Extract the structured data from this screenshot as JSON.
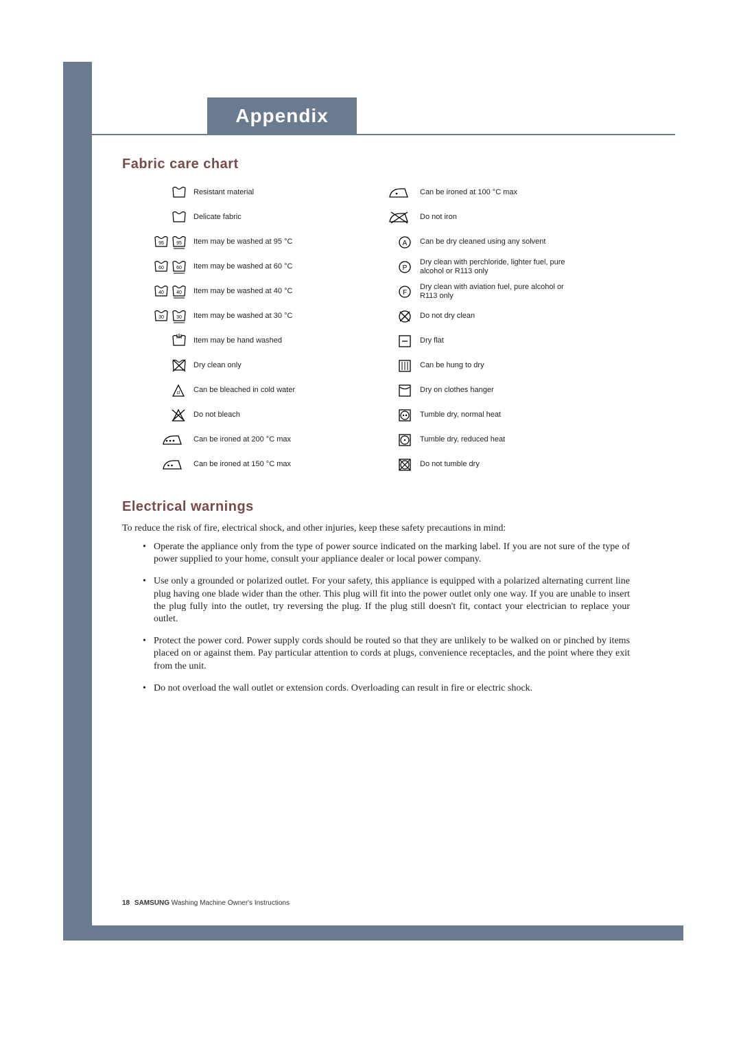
{
  "title": "Appendix",
  "section1_heading": "Fabric care chart",
  "section2_heading": "Electrical warnings",
  "warnings_intro": "To reduce the risk of fire, electrical shock, and other injuries, keep these safety precautions in mind:",
  "warnings": [
    "Operate the appliance only from the type of power source indicated on the marking label.  If you are not sure of the type of power supplied to your home, consult your appliance dealer or local power company.",
    "Use only a grounded or polarized outlet.  For your safety, this appliance is equipped with a polarized alternating current line plug having one blade wider than the other.  This plug will fit into the power outlet only one way.  If you are unable to insert the plug fully into the outlet, try reversing the plug.  If the plug still doesn't fit, contact your electrician to replace your outlet.",
    "Protect the power cord. Power supply cords should be routed so that they are unlikely to be walked on or pinched by items placed on or against them.  Pay particular attention to cords at plugs, convenience receptacles, and the point where they exit from the unit.",
    "Do not overload the wall outlet or extension cords.  Overloading can result in fire or electric shock."
  ],
  "footer_page": "18",
  "footer_brand": "SAMSUNG",
  "footer_text": " Washing Machine Owner's Instructions",
  "chart_left": [
    {
      "icon": "tub",
      "label": "Resistant material"
    },
    {
      "icon": "tub",
      "label": "Delicate fabric"
    },
    {
      "icon": "tub-95-pair",
      "label": "Item may be washed at 95 °C"
    },
    {
      "icon": "tub-60-pair",
      "label": "Item may be washed at 60 °C"
    },
    {
      "icon": "tub-40-pair",
      "label": "Item may be washed at 40 °C"
    },
    {
      "icon": "tub-30-pair",
      "label": "Item may be washed at 30 °C"
    },
    {
      "icon": "hand-wash",
      "label": "Item may be hand washed"
    },
    {
      "icon": "tub-cross",
      "label": "Dry clean only"
    },
    {
      "icon": "triangle",
      "label": "Can be bleached in cold water"
    },
    {
      "icon": "triangle-cross",
      "label": "Do not bleach"
    },
    {
      "icon": "iron-3",
      "label": "Can be ironed at 200 °C max"
    },
    {
      "icon": "iron-2",
      "label": "Can be ironed at 150 °C max"
    }
  ],
  "chart_right": [
    {
      "icon": "iron-1",
      "label": "Can be ironed at 100 °C  max"
    },
    {
      "icon": "iron-cross",
      "label": "Do not iron"
    },
    {
      "icon": "circle-a",
      "label": "Can be dry cleaned using any solvent"
    },
    {
      "icon": "circle-p",
      "label": "Dry clean with perchloride, lighter fuel, pure alcohol or R113 only"
    },
    {
      "icon": "circle-f",
      "label": "Dry clean with aviation fuel, pure alcohol or R113 only"
    },
    {
      "icon": "circle-cross",
      "label": "Do not dry clean"
    },
    {
      "icon": "sq-dash",
      "label": "Dry flat"
    },
    {
      "icon": "sq-lines",
      "label": "Can be hung to dry"
    },
    {
      "icon": "sq-curve",
      "label": "Dry on clothes hanger"
    },
    {
      "icon": "sq-circ-2",
      "label": "Tumble dry, normal heat"
    },
    {
      "icon": "sq-circ-1",
      "label": "Tumble dry, reduced heat"
    },
    {
      "icon": "sq-circ-cross",
      "label": "Do not tumble dry"
    }
  ],
  "style": {
    "bar_color": "#6a7a8f",
    "heading_color": "#7a4a4a",
    "text_color": "#222222",
    "chart_font_size": 11,
    "body_font_size": 14
  }
}
